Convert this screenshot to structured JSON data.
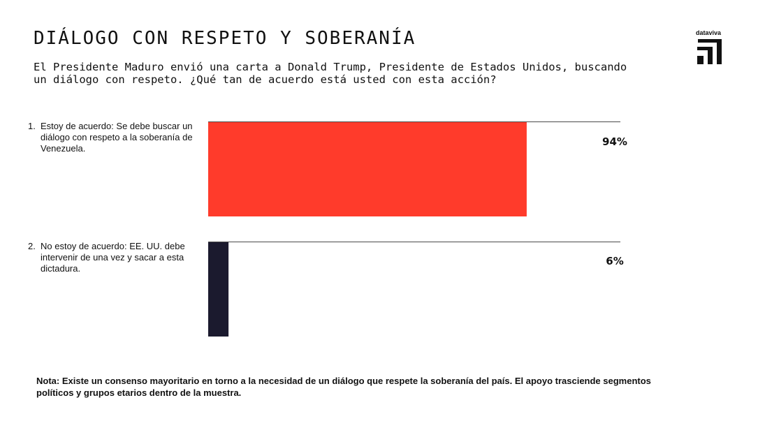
{
  "header": {
    "title": "DIÁLOGO CON RESPETO Y SOBERANÍA",
    "subtitle": "El Presidente Maduro envió una carta a Donald Trump, Presidente de Estados Unidos, buscando un diálogo con respeto. ¿Qué tan de acuerdo está usted con esta acción?"
  },
  "logo": {
    "text": "dataviva",
    "icon": "dataviva-logo-icon"
  },
  "chart_data": {
    "type": "bar",
    "orientation": "vertical",
    "title": "DIÁLOGO CON RESPETO Y SOBERANÍA",
    "categories": [
      {
        "number": "1.",
        "label": "Estoy de acuerdo: Se debe buscar un diálogo con respeto a la soberanía de Venezuela."
      },
      {
        "number": "2.",
        "label": "No estoy de acuerdo: EE. UU. debe intervenir de una vez y sacar a esta dictadura."
      }
    ],
    "values": [
      94,
      6
    ],
    "value_labels": [
      "94%",
      "6%"
    ],
    "ylim": [
      0,
      100
    ],
    "colors": [
      "#ff3b2b",
      "#1b1a2e"
    ],
    "grid": false,
    "legend": "none"
  },
  "note": "Nota: Existe un consenso mayoritario en torno a la necesidad de un diálogo que respete la soberanía del país. El apoyo trasciende segmentos políticos y grupos etarios dentro de la muestra."
}
